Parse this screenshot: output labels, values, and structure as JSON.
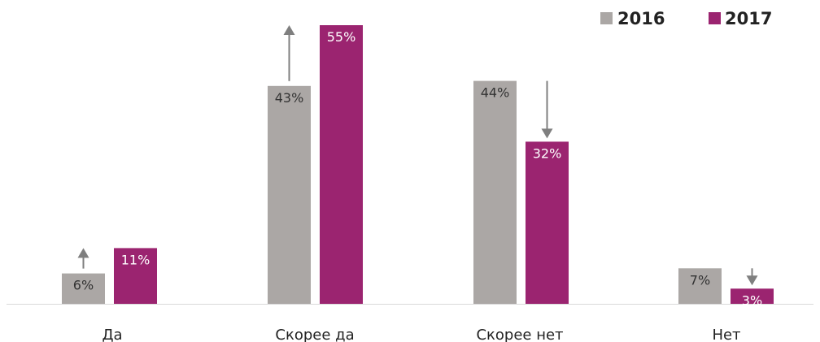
{
  "chart_data": {
    "type": "bar",
    "categories": [
      "Да",
      "Скорее да",
      "Скорее нет",
      "Нет"
    ],
    "series": [
      {
        "name": "2016",
        "values": [
          6,
          43,
          44,
          7
        ],
        "labels": [
          "6%",
          "43%",
          "44%",
          "7%"
        ],
        "color": "#aba7a5",
        "label_color": "#333333"
      },
      {
        "name": "2017",
        "values": [
          11,
          55,
          32,
          3
        ],
        "labels": [
          "11%",
          "55%",
          "32%",
          "3%"
        ],
        "color": "#9b2470",
        "label_color": "#ffffff"
      }
    ],
    "arrows": [
      "up",
      "up",
      "down",
      "down"
    ],
    "arrow_color": "#7f7f7f",
    "axis_color": "#d9d9d9",
    "ylim": [
      0,
      55
    ],
    "legend_position": "top-right",
    "grid": false
  }
}
